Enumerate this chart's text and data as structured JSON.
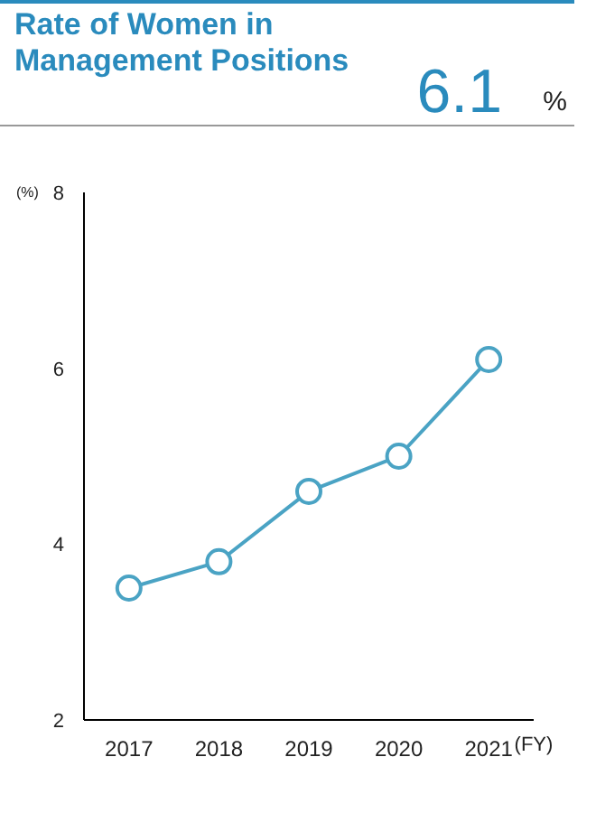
{
  "chart_data": {
    "type": "line",
    "title": "Rate of Women in Management Positions",
    "annotations": [
      "6.1",
      "%"
    ],
    "categories": [
      "2017",
      "2018",
      "2019",
      "2020",
      "2021"
    ],
    "values": [
      3.5,
      3.8,
      4.6,
      5.0,
      6.1
    ],
    "color": "#4aa3c4",
    "xlabel": "(FY)",
    "ylabel": "(%)",
    "ylim": [
      2,
      8
    ],
    "yticks": [
      2,
      4,
      6,
      8
    ],
    "marker": "circle",
    "grid": false
  }
}
